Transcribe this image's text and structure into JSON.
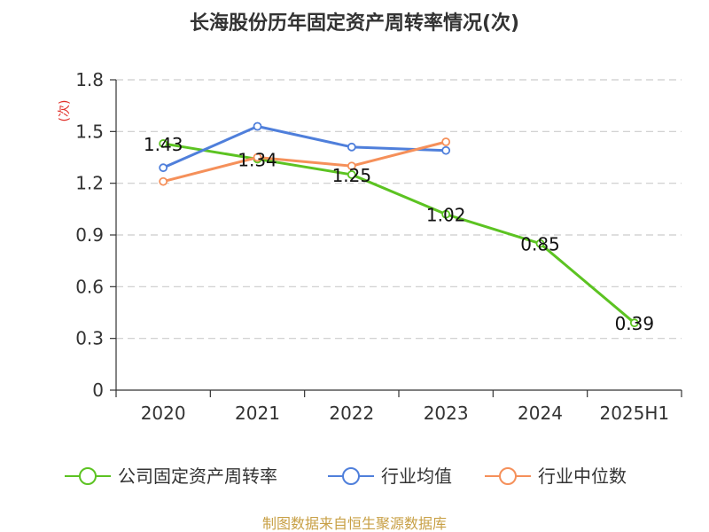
{
  "chart_data": {
    "type": "line",
    "title": "长海股份历年固定资产周转率情况(次)",
    "ylabel": "(次)",
    "xlabel": "",
    "categories": [
      "2020",
      "2021",
      "2022",
      "2023",
      "2024",
      "2025H1"
    ],
    "ylim": [
      0,
      1.8
    ],
    "yticks": [
      "0",
      "0.3",
      "0.6",
      "0.9",
      "1.2",
      "1.5",
      "1.8"
    ],
    "ytick_values": [
      0,
      0.3,
      0.6,
      0.9,
      1.2,
      1.5,
      1.8
    ],
    "grid": true,
    "legend_position": "bottom",
    "series": [
      {
        "name": "公司固定资产周转率",
        "color": "#5cc322",
        "values": [
          1.43,
          1.34,
          1.25,
          1.02,
          0.85,
          0.39
        ],
        "labels": [
          "1.43",
          "1.34",
          "1.25",
          "1.02",
          "0.85",
          "0.39"
        ]
      },
      {
        "name": "行业均值",
        "color": "#4f7fdb",
        "values": [
          1.29,
          1.53,
          1.41,
          1.39,
          null,
          null
        ]
      },
      {
        "name": "行业中位数",
        "color": "#f5905a",
        "values": [
          1.21,
          1.35,
          1.3,
          1.44,
          null,
          null
        ]
      }
    ]
  },
  "source": "制图数据来自恒生聚源数据库"
}
